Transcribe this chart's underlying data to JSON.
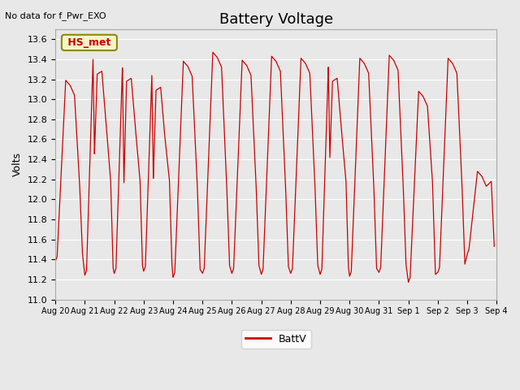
{
  "title": "Battery Voltage",
  "ylabel": "Volts",
  "top_left_note": "No data for f_Pwr_EXO",
  "legend_label": "BattV",
  "legend_line_color": "#cc0000",
  "line_color": "#cc0000",
  "ylim": [
    11.0,
    13.7
  ],
  "yticks": [
    11.0,
    11.2,
    11.4,
    11.6,
    11.8,
    12.0,
    12.2,
    12.4,
    12.6,
    12.8,
    13.0,
    13.2,
    13.4,
    13.6
  ],
  "bg_color": "#e8e8e8",
  "plot_bg_color": "#e8e8e8",
  "legend_box_color": "#f5f5c8",
  "legend_box_edge": "#8b8b00",
  "legend_text_color": "#cc0000",
  "x_labels": [
    "Aug 20",
    "Aug 21",
    "Aug 22",
    "Aug 23",
    "Aug 24",
    "Aug 25",
    "Aug 26",
    "Aug 27",
    "Aug 28",
    "Aug 29",
    "Aug 30",
    "Aug 31",
    "Sep 1",
    "Sep 2",
    "Sep 3",
    "Sep 4"
  ]
}
